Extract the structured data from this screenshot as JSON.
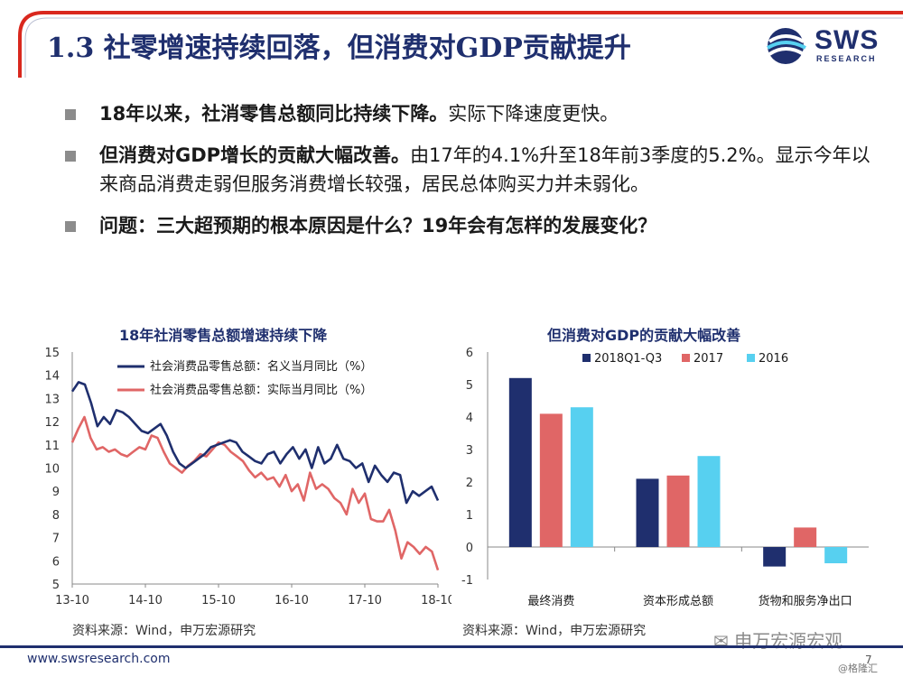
{
  "header": {
    "title": "1.3 社零增速持续回落，但消费对GDP贡献提升",
    "logo_text": "SWS",
    "logo_sub": "RESEARCH"
  },
  "bullets": [
    {
      "bold": "18年以来，社消零售总额同比持续下降。",
      "normal": "实际下降速度更快。"
    },
    {
      "bold": "但消费对GDP增长的贡献大幅改善。",
      "normal": "由17年的4.1%升至18年前3季度的5.2%。显示今年以来商品消费走弱但服务消费增长较强，居民总体购买力并未弱化。"
    },
    {
      "bold": "问题：三大超预期的根本原因是什么？19年会有怎样的发展变化？",
      "normal": ""
    }
  ],
  "left_chart": {
    "title": "18年社消零售总额增速持续下降",
    "source": "资料来源：Wind，申万宏源研究"
  },
  "right_chart": {
    "title": "但消费对GDP的贡献大幅改善",
    "source": "资料来源：Wind，申万宏源研究"
  },
  "footer": {
    "url": "www.swsresearch.com",
    "page": "7",
    "watermark": "申万宏源宏观",
    "watermark2": "@格隆汇"
  },
  "colors": {
    "navy": "#1f2f6e",
    "red": "#e06666",
    "cyan": "#57d0f0",
    "accent_red": "#d9281e"
  },
  "chart_data": [
    {
      "type": "line",
      "title": "18年社消零售总额增速持续下降",
      "x_ticks": [
        "13-10",
        "14-10",
        "15-10",
        "16-10",
        "17-10",
        "18-10"
      ],
      "ylim": [
        5,
        15
      ],
      "y_ticks": [
        5,
        6,
        7,
        8,
        9,
        10,
        11,
        12,
        13,
        14,
        15
      ],
      "legend_position": "top-right",
      "series": [
        {
          "name": "社会消费品零售总额：名义当月同比（%）",
          "color": "#1f2f6e",
          "values": [
            13.3,
            13.7,
            13.6,
            12.8,
            11.8,
            12.2,
            11.9,
            12.5,
            12.4,
            12.2,
            11.9,
            11.6,
            11.5,
            11.7,
            11.9,
            11.4,
            10.7,
            10.2,
            10.0,
            10.2,
            10.4,
            10.6,
            10.9,
            11.0,
            11.1,
            11.2,
            11.1,
            10.7,
            10.5,
            10.3,
            10.2,
            10.6,
            10.7,
            10.2,
            10.6,
            10.9,
            10.4,
            10.8,
            10.0,
            10.9,
            10.2,
            10.4,
            11.0,
            10.4,
            10.3,
            10.0,
            10.2,
            9.4,
            10.1,
            9.7,
            9.4,
            9.8,
            9.7,
            8.5,
            9.0,
            8.8,
            9.0,
            9.2,
            8.6
          ]
        },
        {
          "name": "社会消费品零售总额：实际当月同比（%）",
          "color": "#e06666",
          "values": [
            11.1,
            11.7,
            12.2,
            11.3,
            10.8,
            10.9,
            10.7,
            10.8,
            10.6,
            10.5,
            10.7,
            10.9,
            10.8,
            11.4,
            11.3,
            10.7,
            10.2,
            10.0,
            9.8,
            10.1,
            10.3,
            10.6,
            10.5,
            10.8,
            11.1,
            11.0,
            10.7,
            10.5,
            10.3,
            9.9,
            9.6,
            9.8,
            9.5,
            9.6,
            9.2,
            9.7,
            9.0,
            9.3,
            8.6,
            9.8,
            9.1,
            9.3,
            9.1,
            8.7,
            8.5,
            8.0,
            9.1,
            8.5,
            8.9,
            7.8,
            7.7,
            7.7,
            8.2,
            7.3,
            6.1,
            6.8,
            6.6,
            6.3,
            6.6,
            6.4,
            5.6
          ]
        }
      ]
    },
    {
      "type": "bar",
      "title": "但消费对GDP的贡献大幅改善",
      "categories": [
        "最终消费",
        "资本形成总额",
        "货物和服务净出口"
      ],
      "ylim": [
        -1,
        6
      ],
      "y_ticks": [
        -1,
        0,
        1,
        2,
        3,
        4,
        5,
        6
      ],
      "legend_position": "top",
      "series": [
        {
          "name": "2018Q1-Q3",
          "color": "#1f2f6e",
          "values": [
            5.2,
            2.1,
            -0.6
          ]
        },
        {
          "name": "2017",
          "color": "#e06666",
          "values": [
            4.1,
            2.2,
            0.6
          ]
        },
        {
          "name": "2016",
          "color": "#57d0f0",
          "values": [
            4.3,
            2.8,
            -0.5
          ]
        }
      ]
    }
  ]
}
